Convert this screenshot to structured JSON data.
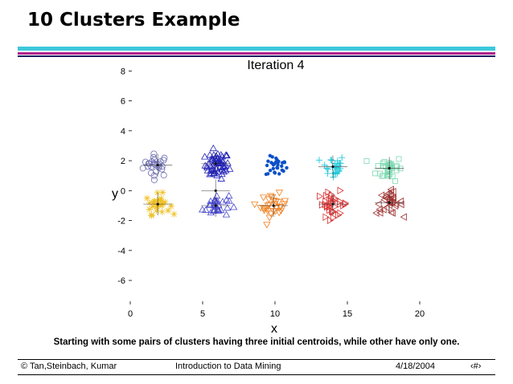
{
  "slide": {
    "title": "10 Clusters Example",
    "caption": "Starting with some pairs of clusters having three initial centroids, while other have only one."
  },
  "footer": {
    "copyright": "© Tan,Steinbach, Kumar",
    "course": "Introduction to Data Mining",
    "date": "4/18/2004",
    "page_symbol": "‹#›"
  },
  "chart_data": {
    "type": "scatter",
    "title": "Iteration 4",
    "xlabel": "x",
    "ylabel": "y",
    "xlim": [
      0,
      20
    ],
    "ylim": [
      -7.5,
      8.5
    ],
    "xticks": [
      0,
      5,
      10,
      15,
      20
    ],
    "yticks": [
      -6,
      -4,
      -2,
      0,
      2,
      4,
      6,
      8
    ],
    "grid": false,
    "clusters": [
      {
        "cx": 1.8,
        "cy": 1.7,
        "spread": [
          0.6,
          0.5
        ],
        "n": 26,
        "marker": "circle",
        "color": "#6a6ab0"
      },
      {
        "cx": 6.0,
        "cy": 1.7,
        "spread": [
          0.55,
          0.6
        ],
        "n": 60,
        "marker": "tri",
        "color": "#2020b8"
      },
      {
        "cx": 10.1,
        "cy": 1.6,
        "spread": [
          0.5,
          0.45
        ],
        "n": 30,
        "marker": "dot",
        "color": "#0a50c8"
      },
      {
        "cx": 14.0,
        "cy": 1.6,
        "spread": [
          0.55,
          0.55
        ],
        "n": 28,
        "marker": "plus",
        "color": "#1ec8d8"
      },
      {
        "cx": 17.9,
        "cy": 1.5,
        "spread": [
          0.6,
          0.55
        ],
        "n": 34,
        "marker": "square",
        "color": "#7ad8b0"
      },
      {
        "cx": 1.9,
        "cy": -0.9,
        "spread": [
          0.55,
          0.45
        ],
        "n": 28,
        "marker": "star",
        "color": "#f0c020"
      },
      {
        "cx": 5.9,
        "cy": -1.0,
        "spread": [
          0.6,
          0.5
        ],
        "n": 32,
        "marker": "tri",
        "color": "#4848d0"
      },
      {
        "cx": 9.9,
        "cy": -1.0,
        "spread": [
          0.6,
          0.5
        ],
        "n": 30,
        "marker": "tri-down",
        "color": "#f08020"
      },
      {
        "cx": 14.0,
        "cy": -0.9,
        "spread": [
          0.7,
          0.55
        ],
        "n": 34,
        "marker": "tri-right",
        "color": "#d83030"
      },
      {
        "cx": 17.9,
        "cy": -0.8,
        "spread": [
          0.6,
          0.5
        ],
        "n": 32,
        "marker": "tri-left",
        "color": "#a03030"
      }
    ],
    "centroids": [
      {
        "x": 1.9,
        "y": 1.7
      },
      {
        "x": 5.9,
        "y": 1.8
      },
      {
        "x": 5.9,
        "y": 0.0
      },
      {
        "x": 14.0,
        "y": 1.6
      },
      {
        "x": 17.9,
        "y": 1.5
      },
      {
        "x": 1.9,
        "y": -0.9
      },
      {
        "x": 5.9,
        "y": -1.0
      },
      {
        "x": 9.9,
        "y": -1.0
      },
      {
        "x": 14.0,
        "y": -0.9
      },
      {
        "x": 17.9,
        "y": -0.8
      }
    ]
  }
}
